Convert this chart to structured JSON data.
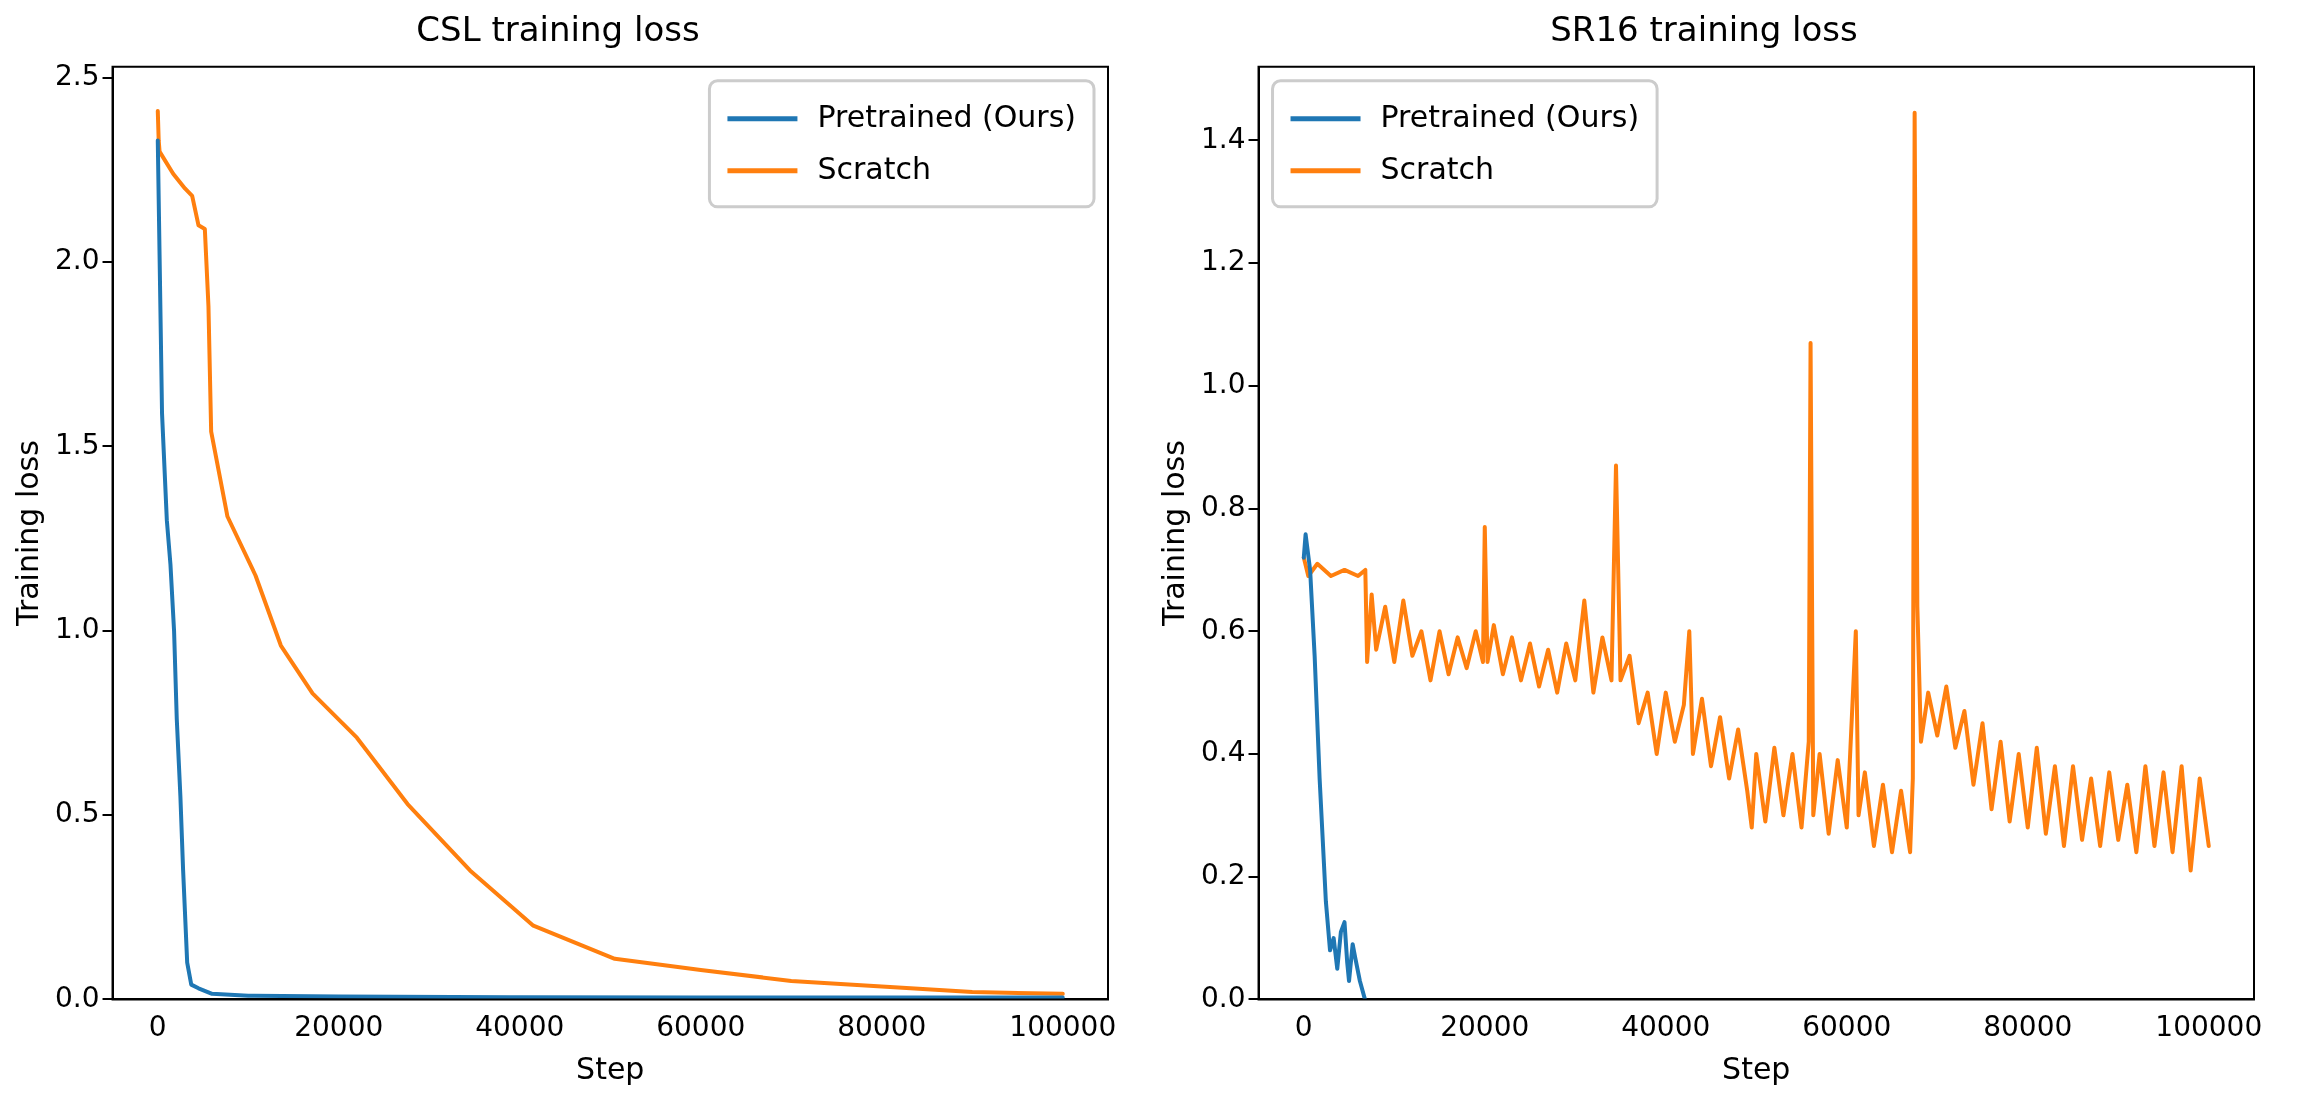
{
  "chart_data": [
    {
      "type": "line",
      "title": "CSL training loss",
      "xlabel": "Step",
      "ylabel": "Training loss",
      "xlim": [
        -5000,
        105000
      ],
      "ylim": [
        0,
        2.53
      ],
      "xticks": [
        0,
        20000,
        40000,
        60000,
        80000,
        100000
      ],
      "yticks": [
        {
          "value": 0,
          "label": "0.0"
        },
        {
          "value": 0.5,
          "label": "0.5"
        },
        {
          "value": 1,
          "label": "1.0"
        },
        {
          "value": 1.5,
          "label": "1.5"
        },
        {
          "value": 2,
          "label": "2.0"
        },
        {
          "value": 2.5,
          "label": "2.5"
        }
      ],
      "grid": false,
      "legend": "top right",
      "marker": "none",
      "line_style": "solid",
      "series": [
        {
          "name": "Pretrained (Ours)",
          "color": "#1f77b4",
          "x": [
            0,
            470,
            1000,
            1400,
            1800,
            2100,
            2500,
            2800,
            3250,
            3700,
            4500,
            6000,
            10000,
            20000,
            40000,
            60000,
            80000,
            100000
          ],
          "values": [
            2.33,
            1.59,
            1.3,
            1.18,
            1.0,
            0.76,
            0.55,
            0.35,
            0.1,
            0.04,
            0.03,
            0.015,
            0.01,
            0.008,
            0.006,
            0.005,
            0.005,
            0.005
          ]
        },
        {
          "name": "Scratch",
          "color": "#ff7f0e",
          "x": [
            0,
            100,
            200,
            1700,
            3000,
            3800,
            4500,
            5200,
            5600,
            5900,
            7700,
            10800,
            13600,
            17100,
            22000,
            27600,
            34500,
            41500,
            50500,
            60000,
            70000,
            80000,
            90000,
            100000
          ],
          "values": [
            2.41,
            2.33,
            2.3,
            2.24,
            2.2,
            2.18,
            2.1,
            2.09,
            1.88,
            1.54,
            1.31,
            1.15,
            0.96,
            0.83,
            0.71,
            0.53,
            0.35,
            0.2,
            0.11,
            0.08,
            0.05,
            0.035,
            0.02,
            0.015
          ]
        }
      ]
    },
    {
      "type": "line",
      "title": "SR16 training loss",
      "xlabel": "Step",
      "ylabel": "Training loss",
      "xlim": [
        -5000,
        105000
      ],
      "ylim": [
        0,
        1.52
      ],
      "xticks": [
        0,
        20000,
        40000,
        60000,
        80000,
        100000
      ],
      "yticks": [
        {
          "value": 0,
          "label": "0.0"
        },
        {
          "value": 0.2,
          "label": "0.2"
        },
        {
          "value": 0.4,
          "label": "0.4"
        },
        {
          "value": 0.6,
          "label": "0.6"
        },
        {
          "value": 0.8,
          "label": "0.8"
        },
        {
          "value": 1,
          "label": "1.0"
        },
        {
          "value": 1.2,
          "label": "1.2"
        },
        {
          "value": 1.4,
          "label": "1.4"
        }
      ],
      "grid": false,
      "legend": "top left",
      "marker": "none",
      "line_style": "solid",
      "series": [
        {
          "name": "Pretrained (Ours)",
          "color": "#1f77b4",
          "x": [
            0,
            200,
            700,
            1200,
            1750,
            2440,
            2900,
            3300,
            3700,
            4100,
            4500,
            4800,
            5000,
            5400,
            5700,
            6200,
            6760
          ],
          "values": [
            0.72,
            0.758,
            0.7,
            0.56,
            0.36,
            0.16,
            0.08,
            0.1,
            0.05,
            0.11,
            0.126,
            0.06,
            0.03,
            0.09,
            0.067,
            0.03,
            0
          ]
        },
        {
          "name": "Scratch",
          "color": "#ff7f0e",
          "x": [
            0,
            500,
            1500,
            3000,
            4500,
            6000,
            6800,
            7000,
            7500,
            8000,
            9000,
            10000,
            11000,
            12000,
            13000,
            14000,
            15000,
            16000,
            17000,
            18000,
            19000,
            19800,
            20000,
            20300,
            21000,
            22000,
            23000,
            24000,
            25000,
            26000,
            27000,
            28000,
            29000,
            30000,
            31000,
            32000,
            33000,
            34000,
            34500,
            35000,
            36000,
            37000,
            38000,
            39000,
            40000,
            41000,
            42000,
            42600,
            43000,
            44000,
            45000,
            46000,
            47000,
            48000,
            49000,
            49500,
            50000,
            51000,
            52000,
            53000,
            54000,
            55000,
            55800,
            56000,
            56300,
            57000,
            58000,
            59000,
            60000,
            61000,
            61300,
            62000,
            63000,
            64000,
            65000,
            66000,
            67000,
            67300,
            67500,
            67800,
            68200,
            69000,
            70000,
            71000,
            72000,
            73000,
            74000,
            75000,
            76000,
            77000,
            78000,
            79000,
            80000,
            81000,
            82000,
            83000,
            84000,
            85000,
            86000,
            87000,
            88000,
            89000,
            90000,
            91000,
            92000,
            93000,
            94000,
            95000,
            96000,
            97000,
            98000,
            99000,
            100000
          ],
          "values": [
            0.72,
            0.69,
            0.71,
            0.69,
            0.7,
            0.69,
            0.7,
            0.55,
            0.66,
            0.57,
            0.64,
            0.55,
            0.65,
            0.56,
            0.6,
            0.52,
            0.6,
            0.53,
            0.59,
            0.54,
            0.6,
            0.55,
            0.77,
            0.55,
            0.61,
            0.53,
            0.59,
            0.52,
            0.58,
            0.51,
            0.57,
            0.5,
            0.58,
            0.52,
            0.65,
            0.5,
            0.59,
            0.52,
            0.87,
            0.52,
            0.56,
            0.45,
            0.5,
            0.4,
            0.5,
            0.42,
            0.48,
            0.6,
            0.4,
            0.49,
            0.38,
            0.46,
            0.36,
            0.44,
            0.34,
            0.28,
            0.4,
            0.29,
            0.41,
            0.3,
            0.4,
            0.28,
            0.42,
            1.07,
            0.3,
            0.4,
            0.27,
            0.39,
            0.28,
            0.6,
            0.3,
            0.37,
            0.25,
            0.35,
            0.24,
            0.34,
            0.24,
            0.36,
            1.445,
            0.64,
            0.42,
            0.5,
            0.43,
            0.51,
            0.41,
            0.47,
            0.35,
            0.45,
            0.31,
            0.42,
            0.29,
            0.4,
            0.28,
            0.41,
            0.27,
            0.38,
            0.25,
            0.38,
            0.26,
            0.36,
            0.25,
            0.37,
            0.26,
            0.35,
            0.24,
            0.38,
            0.25,
            0.37,
            0.24,
            0.38,
            0.21,
            0.36,
            0.25
          ]
        }
      ]
    }
  ]
}
